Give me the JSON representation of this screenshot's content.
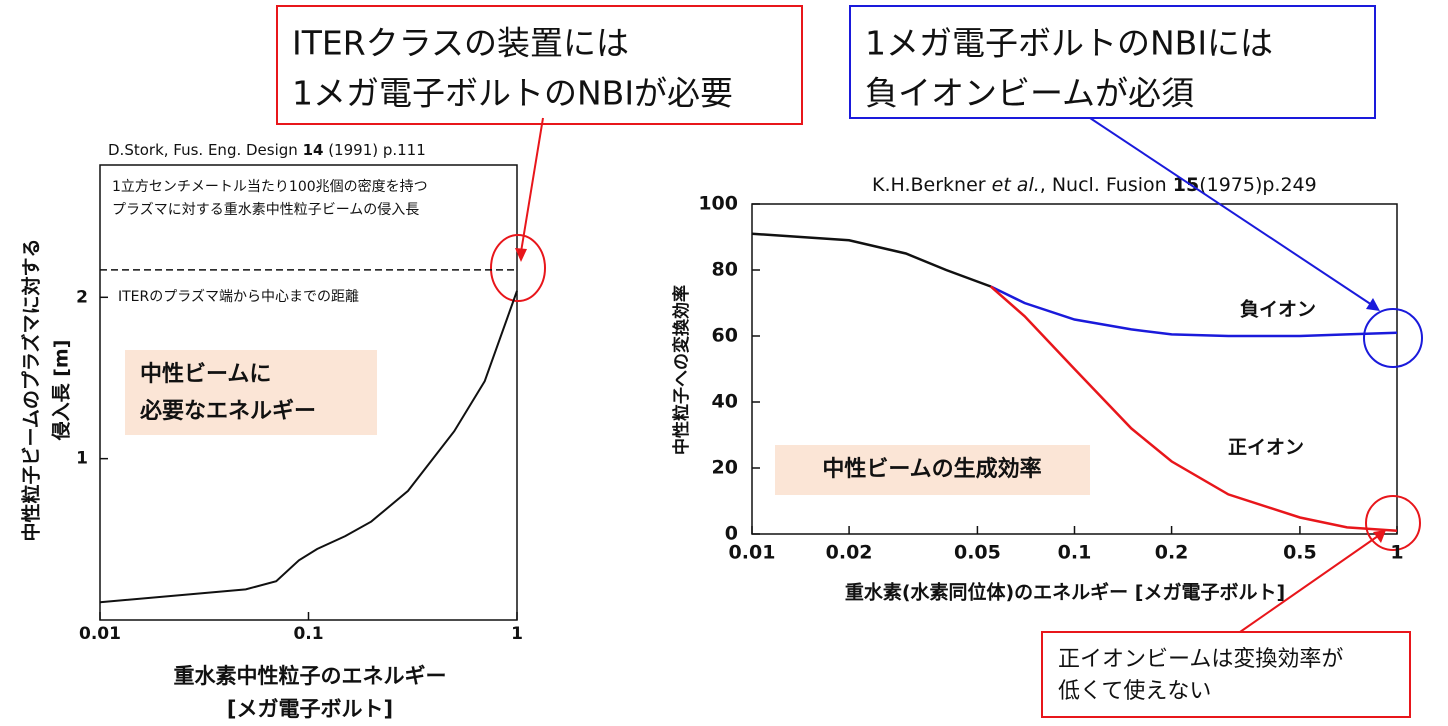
{
  "chart_data": [
    {
      "type": "line",
      "log_x": true,
      "source": [
        "D.Stork, Fus. Eng. Design ",
        "14",
        " (1991) p.111"
      ],
      "note": [
        "1立方センチメートル当たり100兆個の密度を持つ",
        "プラズマに対する重水素中性粒子ビームの侵入長"
      ],
      "ylabel": [
        "中性粒子ビームのプラズマに対する",
        "侵入長 [m]"
      ],
      "xlabel": [
        "重水素中性粒子のエネルギー",
        "[メガ電子ボルト]"
      ],
      "x": [
        0.01,
        0.05,
        0.07,
        0.09,
        0.11,
        0.15,
        0.2,
        0.3,
        0.5,
        0.7,
        1
      ],
      "series": [
        {
          "color": "#111111",
          "values": [
            0.11,
            0.19,
            0.24,
            0.37,
            0.44,
            0.52,
            0.61,
            0.8,
            1.17,
            1.48,
            2.04
          ]
        }
      ],
      "reference_line": 2.17,
      "reference_label": "ITERのプラズマ端から中心までの距離",
      "xlim": [
        0.01,
        1
      ],
      "ylim": [
        0,
        2.82
      ],
      "xticks": [
        0.01,
        0.1,
        1
      ],
      "yticks": [
        1,
        2
      ],
      "highlight": [
        "中性ビームに",
        "必要なエネルギー"
      ],
      "callout": [
        "ITERクラスの装置には",
        "1メガ電子ボルトのNBIが必要"
      ]
    },
    {
      "type": "line",
      "log_x": true,
      "source": [
        "K.H.Berkner ",
        "et al.",
        ", Nucl. Fusion ",
        "15",
        "(1975)p.249"
      ],
      "ylabel": [
        "中性粒子への変換効率"
      ],
      "xlabel": [
        "重水素(水素同位体)のエネルギー [メガ電子ボルト]"
      ],
      "x": [
        0.01,
        0.02,
        0.03,
        0.04,
        0.055,
        0.07,
        0.1,
        0.15,
        0.2,
        0.3,
        0.5,
        0.7,
        1
      ],
      "series": [
        {
          "color": "#111111",
          "values": [
            91,
            89,
            85,
            80,
            75,
            null,
            null,
            null,
            null,
            null,
            null,
            null,
            null
          ]
        },
        {
          "name": "負イオン",
          "color": "#1a1adb",
          "values": [
            null,
            null,
            null,
            null,
            75,
            70,
            65,
            62,
            60.5,
            60,
            60,
            60.5,
            61
          ]
        },
        {
          "name": "正イオン",
          "color": "#e8161b",
          "values": [
            null,
            null,
            null,
            null,
            75,
            66,
            50,
            32,
            22,
            12,
            5,
            2,
            1
          ]
        }
      ],
      "xlim": [
        0.01,
        1
      ],
      "ylim": [
        0,
        100
      ],
      "xticks": [
        0.01,
        0.02,
        0.05,
        0.1,
        0.2,
        0.5,
        1
      ],
      "yticks": [
        0,
        20,
        40,
        60,
        80,
        100
      ],
      "highlight": [
        "中性ビームの生成効率"
      ],
      "callout": [
        "1メガ電子ボルトのNBIには",
        "負イオンビームが必須"
      ],
      "callout_low": [
        "正イオンビームは変換効率が",
        "低くて使えない"
      ]
    }
  ]
}
